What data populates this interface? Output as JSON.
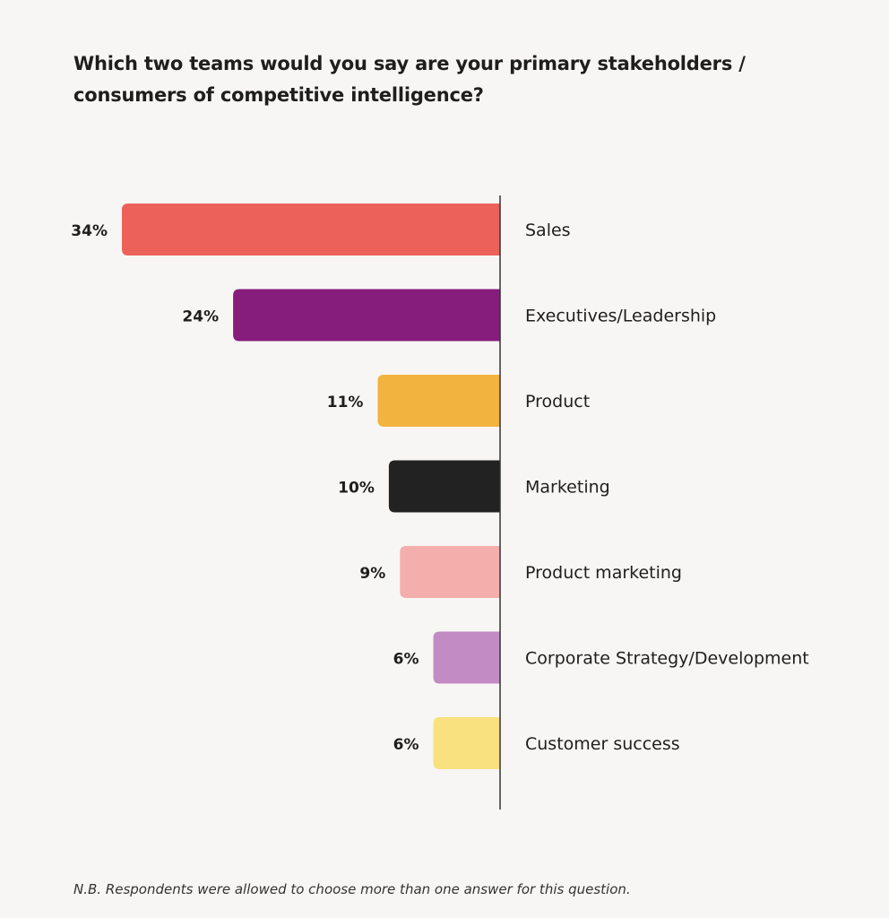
{
  "chart_data": {
    "type": "bar",
    "orientation": "horizontal",
    "title": "Which two teams would you say are your primary stakeholders / consumers of competitive intelligence?",
    "categories": [
      "Sales",
      "Executives/Leadership",
      "Product",
      "Marketing",
      "Product marketing",
      "Corporate Strategy/Development",
      "Customer success"
    ],
    "values": [
      34,
      24,
      11,
      10,
      9,
      6,
      6
    ],
    "value_labels": [
      "34%",
      "24%",
      "11%",
      "10%",
      "9%",
      "6%",
      "6%"
    ],
    "colors": [
      "#ec6159",
      "#861c7c",
      "#f2b43f",
      "#222222",
      "#f4aeac",
      "#c38bc4",
      "#f9e17f"
    ],
    "unit": "%",
    "xlim": [
      0,
      34
    ],
    "grid": false,
    "footnote": "N.B. Respondents were allowed to choose more than one answer for this question."
  }
}
